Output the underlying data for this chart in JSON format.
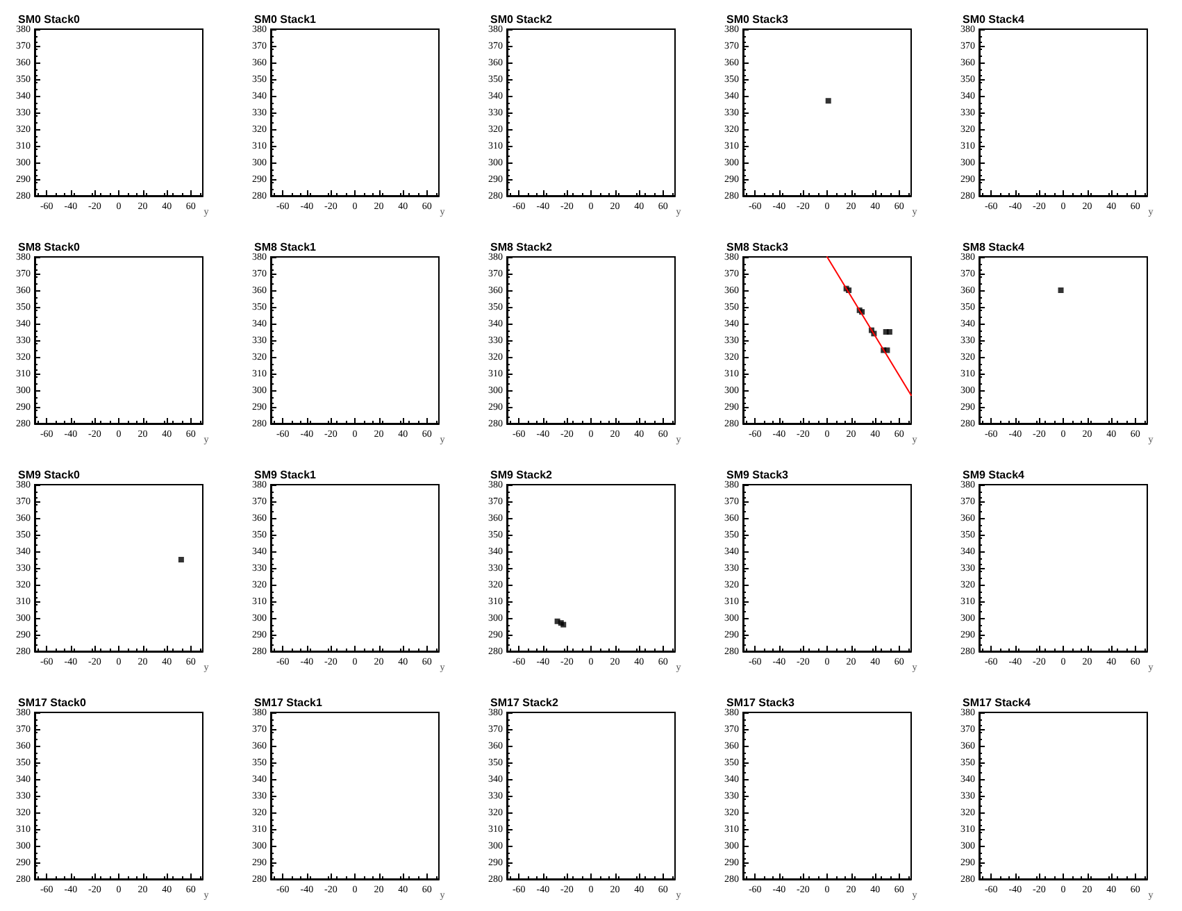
{
  "chart_data": [
    {
      "type": "scatter",
      "title": "SM0 Stack0",
      "xlabel": "y",
      "xlim": [
        -70,
        70
      ],
      "xticks": [
        -60,
        -40,
        -20,
        0,
        20,
        40,
        60
      ],
      "ylim": [
        280,
        380
      ],
      "yticks": [
        280,
        290,
        300,
        310,
        320,
        330,
        340,
        350,
        360,
        370,
        380
      ]
    },
    {
      "type": "scatter",
      "title": "SM0 Stack1",
      "xlabel": "y",
      "xlim": [
        -70,
        70
      ],
      "xticks": [
        -60,
        -40,
        -20,
        0,
        20,
        40,
        60
      ],
      "ylim": [
        280,
        380
      ],
      "yticks": [
        280,
        290,
        300,
        310,
        320,
        330,
        340,
        350,
        360,
        370,
        380
      ]
    },
    {
      "type": "scatter",
      "title": "SM0 Stack2",
      "xlabel": "y",
      "xlim": [
        -70,
        70
      ],
      "xticks": [
        -60,
        -40,
        -20,
        0,
        20,
        40,
        60
      ],
      "ylim": [
        280,
        380
      ],
      "yticks": [
        280,
        290,
        300,
        310,
        320,
        330,
        340,
        350,
        360,
        370,
        380
      ]
    },
    {
      "type": "scatter",
      "title": "SM0 Stack3",
      "xlabel": "y",
      "xlim": [
        -70,
        70
      ],
      "xticks": [
        -60,
        -40,
        -20,
        0,
        20,
        40,
        60
      ],
      "ylim": [
        280,
        380
      ],
      "yticks": [
        280,
        290,
        300,
        310,
        320,
        330,
        340,
        350,
        360,
        370,
        380
      ],
      "marker": "square",
      "series": [
        {
          "color": "#000000",
          "x": [
            1
          ],
          "values": [
            337
          ]
        }
      ]
    },
    {
      "type": "scatter",
      "title": "SM0 Stack4",
      "xlabel": "y",
      "xlim": [
        -70,
        70
      ],
      "xticks": [
        -60,
        -40,
        -20,
        0,
        20,
        40,
        60
      ],
      "ylim": [
        280,
        380
      ],
      "yticks": [
        280,
        290,
        300,
        310,
        320,
        330,
        340,
        350,
        360,
        370,
        380
      ]
    },
    {
      "type": "scatter",
      "title": "SM8 Stack0",
      "xlabel": "y",
      "xlim": [
        -70,
        70
      ],
      "xticks": [
        -60,
        -40,
        -20,
        0,
        20,
        40,
        60
      ],
      "ylim": [
        280,
        380
      ],
      "yticks": [
        280,
        290,
        300,
        310,
        320,
        330,
        340,
        350,
        360,
        370,
        380
      ]
    },
    {
      "type": "scatter",
      "title": "SM8 Stack1",
      "xlabel": "y",
      "xlim": [
        -70,
        70
      ],
      "xticks": [
        -60,
        -40,
        -20,
        0,
        20,
        40,
        60
      ],
      "ylim": [
        280,
        380
      ],
      "yticks": [
        280,
        290,
        300,
        310,
        320,
        330,
        340,
        350,
        360,
        370,
        380
      ]
    },
    {
      "type": "scatter",
      "title": "SM8 Stack2",
      "xlabel": "y",
      "xlim": [
        -70,
        70
      ],
      "xticks": [
        -60,
        -40,
        -20,
        0,
        20,
        40,
        60
      ],
      "ylim": [
        280,
        380
      ],
      "yticks": [
        280,
        290,
        300,
        310,
        320,
        330,
        340,
        350,
        360,
        370,
        380
      ]
    },
    {
      "type": "scatter",
      "title": "SM8 Stack3",
      "xlabel": "y",
      "xlim": [
        -70,
        70
      ],
      "xticks": [
        -60,
        -40,
        -20,
        0,
        20,
        40,
        60
      ],
      "ylim": [
        280,
        380
      ],
      "yticks": [
        280,
        290,
        300,
        310,
        320,
        330,
        340,
        350,
        360,
        370,
        380
      ],
      "series": [
        {
          "color": "#000000",
          "marker": "square",
          "x": [
            16,
            18,
            27,
            29,
            37,
            39,
            47,
            50,
            49,
            52
          ],
          "values": [
            361,
            360,
            348,
            347,
            336,
            334,
            324,
            324,
            335,
            335
          ]
        },
        {
          "type": "line",
          "marker": "none",
          "color": "#ff0000",
          "x": [
            0,
            70
          ],
          "values": [
            380,
            297
          ]
        }
      ]
    },
    {
      "type": "scatter",
      "title": "SM8 Stack4",
      "xlabel": "y",
      "xlim": [
        -70,
        70
      ],
      "xticks": [
        -60,
        -40,
        -20,
        0,
        20,
        40,
        60
      ],
      "ylim": [
        280,
        380
      ],
      "yticks": [
        280,
        290,
        300,
        310,
        320,
        330,
        340,
        350,
        360,
        370,
        380
      ],
      "marker": "square",
      "series": [
        {
          "color": "#000000",
          "x": [
            -2
          ],
          "values": [
            360
          ]
        }
      ]
    },
    {
      "type": "scatter",
      "title": "SM9 Stack0",
      "xlabel": "y",
      "xlim": [
        -70,
        70
      ],
      "xticks": [
        -60,
        -40,
        -20,
        0,
        20,
        40,
        60
      ],
      "ylim": [
        280,
        380
      ],
      "yticks": [
        280,
        290,
        300,
        310,
        320,
        330,
        340,
        350,
        360,
        370,
        380
      ],
      "marker": "square",
      "series": [
        {
          "color": "#000000",
          "x": [
            52
          ],
          "values": [
            335
          ]
        }
      ]
    },
    {
      "type": "scatter",
      "title": "SM9 Stack1",
      "xlabel": "y",
      "xlim": [
        -70,
        70
      ],
      "xticks": [
        -60,
        -40,
        -20,
        0,
        20,
        40,
        60
      ],
      "ylim": [
        280,
        380
      ],
      "yticks": [
        280,
        290,
        300,
        310,
        320,
        330,
        340,
        350,
        360,
        370,
        380
      ]
    },
    {
      "type": "scatter",
      "title": "SM9 Stack2",
      "xlabel": "y",
      "xlim": [
        -70,
        70
      ],
      "xticks": [
        -60,
        -40,
        -20,
        0,
        20,
        40,
        60
      ],
      "ylim": [
        280,
        380
      ],
      "yticks": [
        280,
        290,
        300,
        310,
        320,
        330,
        340,
        350,
        360,
        370,
        380
      ],
      "marker": "square",
      "series": [
        {
          "color": "#000000",
          "x": [
            -28,
            -25,
            -23
          ],
          "values": [
            298,
            297,
            296
          ]
        }
      ]
    },
    {
      "type": "scatter",
      "title": "SM9 Stack3",
      "xlabel": "y",
      "xlim": [
        -70,
        70
      ],
      "xticks": [
        -60,
        -40,
        -20,
        0,
        20,
        40,
        60
      ],
      "ylim": [
        280,
        380
      ],
      "yticks": [
        280,
        290,
        300,
        310,
        320,
        330,
        340,
        350,
        360,
        370,
        380
      ]
    },
    {
      "type": "scatter",
      "title": "SM9 Stack4",
      "xlabel": "y",
      "xlim": [
        -70,
        70
      ],
      "xticks": [
        -60,
        -40,
        -20,
        0,
        20,
        40,
        60
      ],
      "ylim": [
        280,
        380
      ],
      "yticks": [
        280,
        290,
        300,
        310,
        320,
        330,
        340,
        350,
        360,
        370,
        380
      ]
    },
    {
      "type": "scatter",
      "title": "SM17 Stack0",
      "xlabel": "y",
      "xlim": [
        -70,
        70
      ],
      "xticks": [
        -60,
        -40,
        -20,
        0,
        20,
        40,
        60
      ],
      "ylim": [
        280,
        380
      ],
      "yticks": [
        280,
        290,
        300,
        310,
        320,
        330,
        340,
        350,
        360,
        370,
        380
      ]
    },
    {
      "type": "scatter",
      "title": "SM17 Stack1",
      "xlabel": "y",
      "xlim": [
        -70,
        70
      ],
      "xticks": [
        -60,
        -40,
        -20,
        0,
        20,
        40,
        60
      ],
      "ylim": [
        280,
        380
      ],
      "yticks": [
        280,
        290,
        300,
        310,
        320,
        330,
        340,
        350,
        360,
        370,
        380
      ]
    },
    {
      "type": "scatter",
      "title": "SM17 Stack2",
      "xlabel": "y",
      "xlim": [
        -70,
        70
      ],
      "xticks": [
        -60,
        -40,
        -20,
        0,
        20,
        40,
        60
      ],
      "ylim": [
        280,
        380
      ],
      "yticks": [
        280,
        290,
        300,
        310,
        320,
        330,
        340,
        350,
        360,
        370,
        380
      ]
    },
    {
      "type": "scatter",
      "title": "SM17 Stack3",
      "xlabel": "y",
      "xlim": [
        -70,
        70
      ],
      "xticks": [
        -60,
        -40,
        -20,
        0,
        20,
        40,
        60
      ],
      "ylim": [
        280,
        380
      ],
      "yticks": [
        280,
        290,
        300,
        310,
        320,
        330,
        340,
        350,
        360,
        370,
        380
      ]
    },
    {
      "type": "scatter",
      "title": "SM17 Stack4",
      "xlabel": "y",
      "xlim": [
        -70,
        70
      ],
      "xticks": [
        -60,
        -40,
        -20,
        0,
        20,
        40,
        60
      ],
      "ylim": [
        280,
        380
      ],
      "yticks": [
        280,
        290,
        300,
        310,
        320,
        330,
        340,
        350,
        360,
        370,
        380
      ]
    }
  ]
}
